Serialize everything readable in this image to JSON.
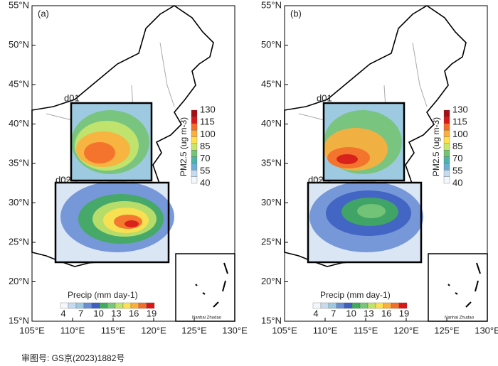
{
  "panels": [
    {
      "label": "(a)"
    },
    {
      "label": "(b)"
    }
  ],
  "lat_labels": [
    "55°N",
    "50°N",
    "45°N",
    "40°N",
    "35°N",
    "30°N",
    "25°N",
    "20°N",
    "15°N"
  ],
  "lon_labels": [
    "105°E",
    "110°E",
    "115°E",
    "120°E",
    "125°E",
    "130°E"
  ],
  "domains": [
    "d01",
    "d02"
  ],
  "pm25_legend": {
    "title": "PM2.5 (ug m-3)",
    "ticks": [
      "130",
      "115",
      "100",
      "85",
      "70",
      "55",
      "40"
    ]
  },
  "precip_legend": {
    "title": "Precip (mm day-1)",
    "ticks": [
      "4",
      "7",
      "10",
      "13",
      "16",
      "19"
    ]
  },
  "inset_label": "Nanhai Zhudao",
  "footer": "审图号: GS京(2023)1882号"
}
